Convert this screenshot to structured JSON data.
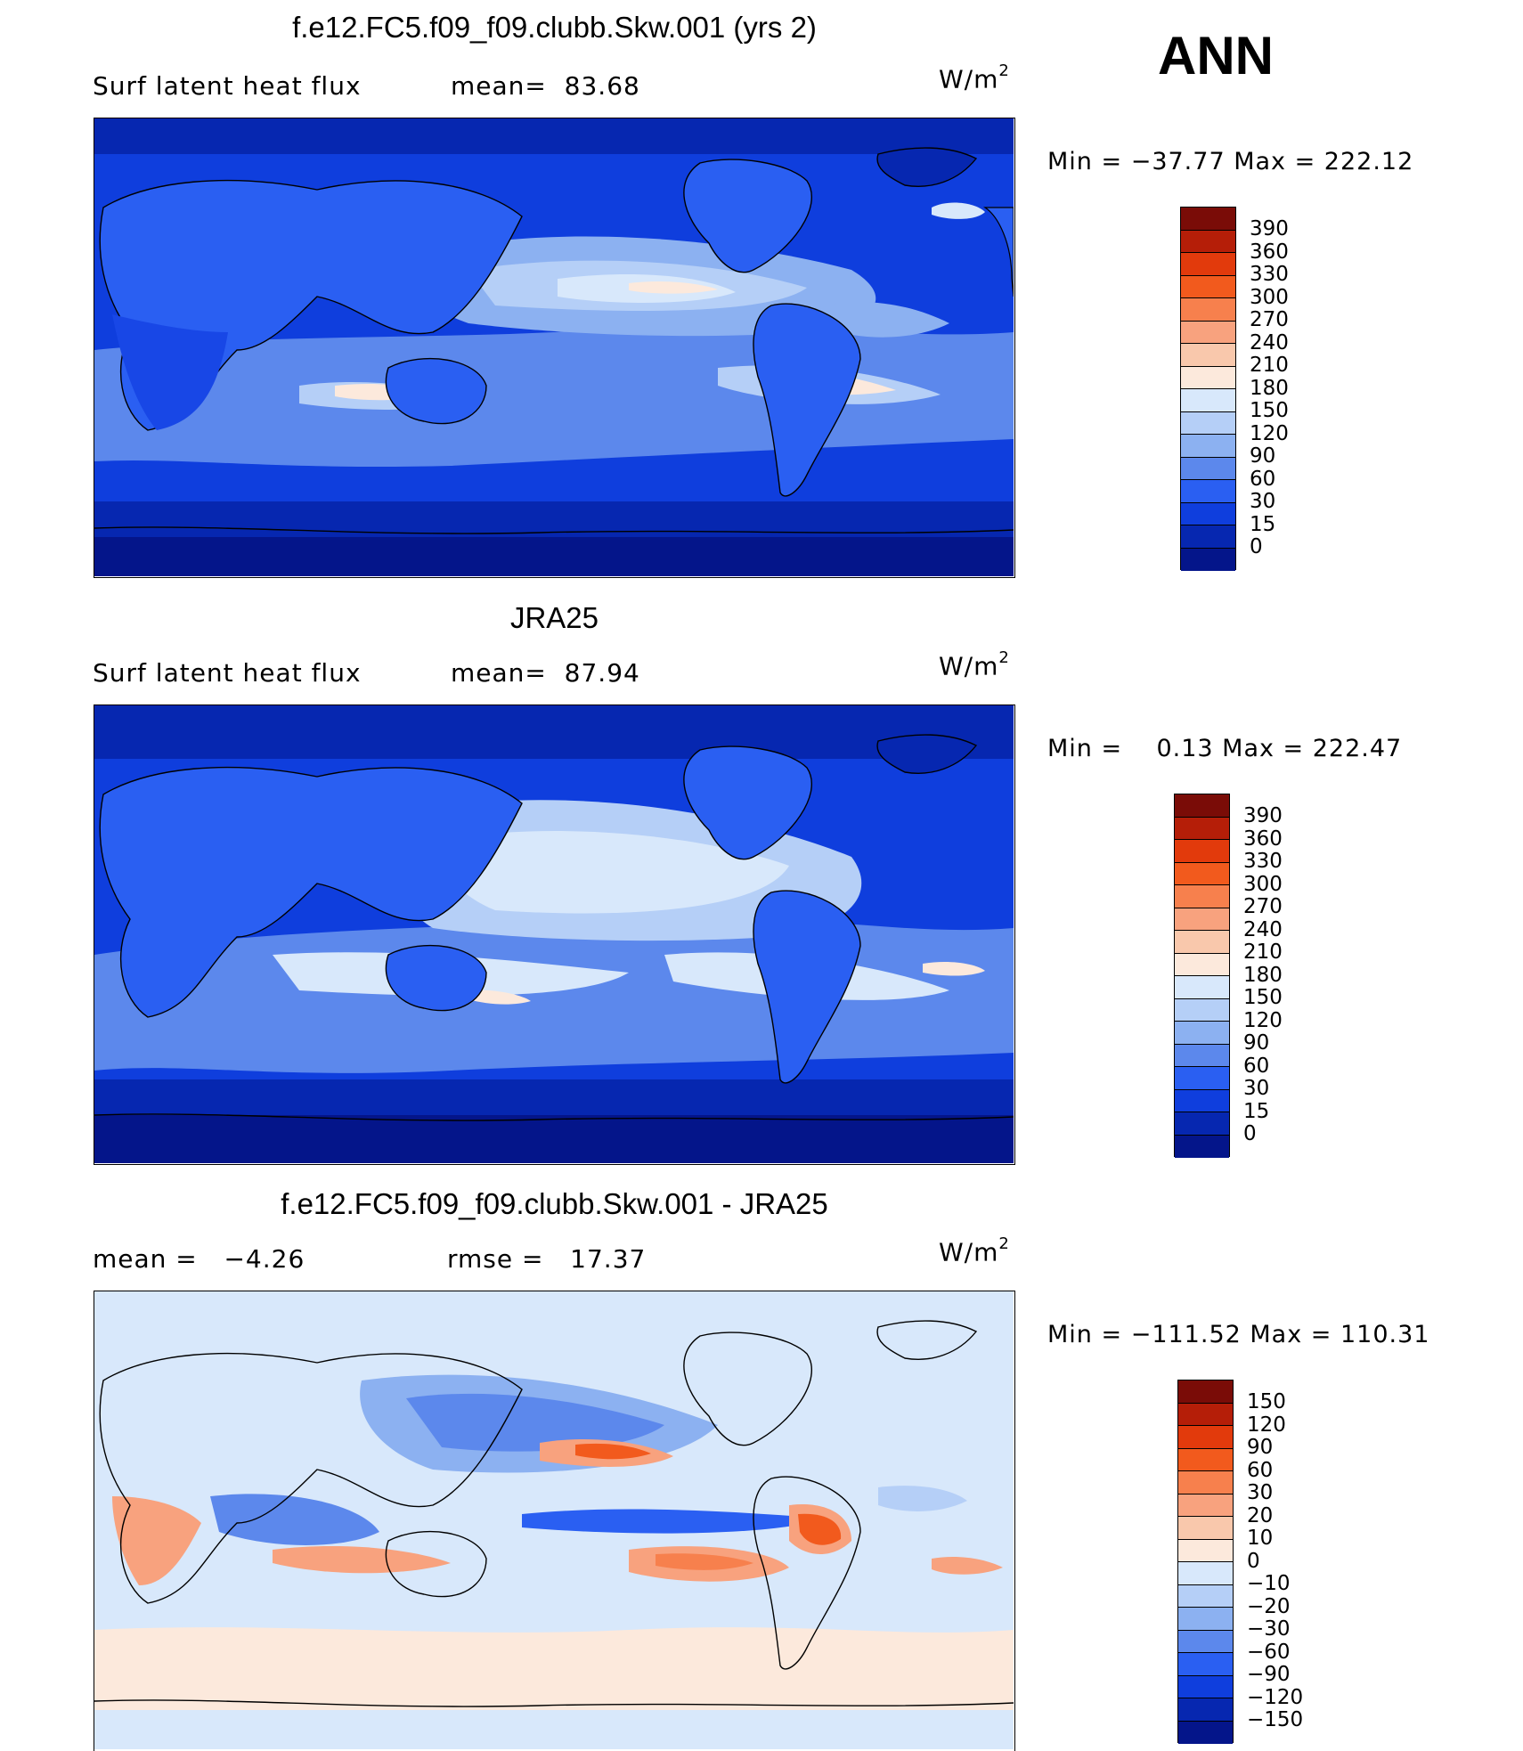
{
  "season": "ANN",
  "panels": [
    {
      "title": "f.e12.FC5.f09_f09.clubb.Skw.001 (yrs 2)",
      "left_text": "Surf latent heat flux",
      "mid_text": "mean=  83.68",
      "units_base": "W/m",
      "units_exp": "2",
      "minmax": "Min = −37.77 Max = 222.12",
      "colorbar": {
        "labels": [
          "390",
          "360",
          "330",
          "300",
          "270",
          "240",
          "210",
          "180",
          "150",
          "120",
          "90",
          "60",
          "30",
          "15",
          "0"
        ],
        "colors": [
          "#7a0c07",
          "#b51e08",
          "#e23a0c",
          "#f25a1d",
          "#f7804d",
          "#f8a27e",
          "#f9c8ac",
          "#fce9dc",
          "#d8e8fb",
          "#b5cff7",
          "#8cb1f1",
          "#5c88ec",
          "#2a5ff2",
          "#0f3edd",
          "#0627b0",
          "#04158a"
        ]
      }
    },
    {
      "title": "JRA25",
      "left_text": "Surf latent heat flux",
      "mid_text": "mean=  87.94",
      "units_base": "W/m",
      "units_exp": "2",
      "minmax": "Min =    0.13 Max = 222.47",
      "colorbar": {
        "labels": [
          "390",
          "360",
          "330",
          "300",
          "270",
          "240",
          "210",
          "180",
          "150",
          "120",
          "90",
          "60",
          "30",
          "15",
          "0"
        ],
        "colors": [
          "#7a0c07",
          "#b51e08",
          "#e23a0c",
          "#f25a1d",
          "#f7804d",
          "#f8a27e",
          "#f9c8ac",
          "#fce9dc",
          "#d8e8fb",
          "#b5cff7",
          "#8cb1f1",
          "#5c88ec",
          "#2a5ff2",
          "#0f3edd",
          "#0627b0",
          "#04158a"
        ]
      }
    },
    {
      "title": "f.e12.FC5.f09_f09.clubb.Skw.001 - JRA25",
      "left_text": "mean =   −4.26",
      "mid_text": "rmse =   17.37",
      "units_base": "W/m",
      "units_exp": "2",
      "minmax": "Min = −111.52 Max = 110.31",
      "colorbar": {
        "labels": [
          "150",
          "120",
          "90",
          "60",
          "30",
          "20",
          "10",
          "0",
          "−10",
          "−20",
          "−30",
          "−60",
          "−90",
          "−120",
          "−150"
        ],
        "colors": [
          "#7a0c07",
          "#b51e08",
          "#e23a0c",
          "#f25a1d",
          "#f7804d",
          "#f8a27e",
          "#f9c8ac",
          "#fce9dc",
          "#d8e8fb",
          "#b5cff7",
          "#8cb1f1",
          "#5c88ec",
          "#2a5ff2",
          "#0f3edd",
          "#0627b0",
          "#04158a"
        ]
      }
    }
  ]
}
